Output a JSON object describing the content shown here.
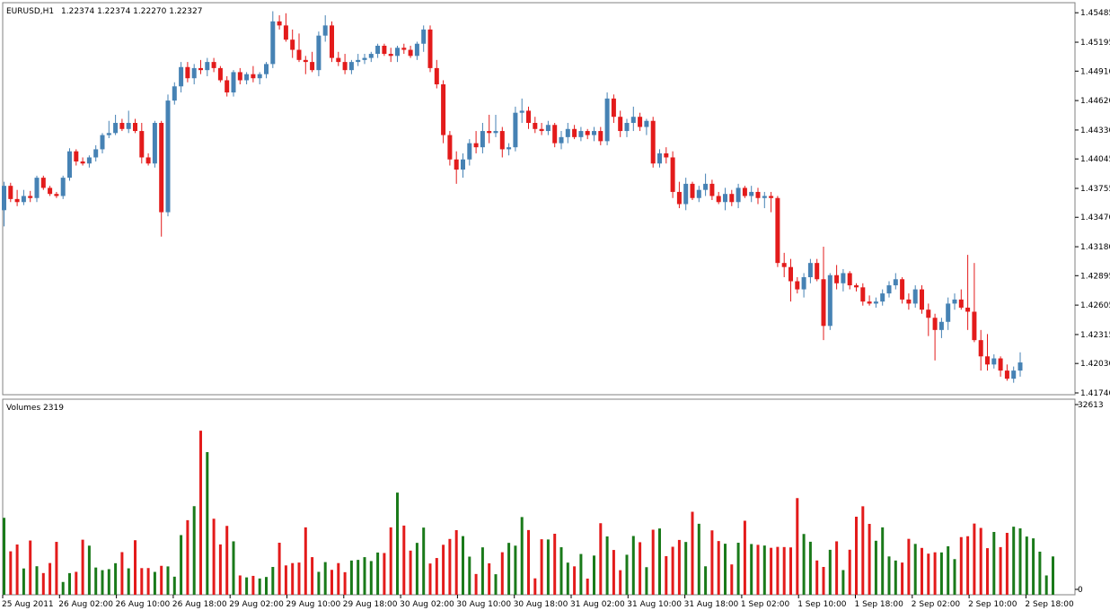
{
  "header": {
    "symbol": "EURUSD,H1",
    "ohlc_values": "1.22374 1.22374 1.22270 1.22327"
  },
  "volume_panel": {
    "label": "Volumes 2319",
    "max_label": "32613",
    "zero_label": "0"
  },
  "colors": {
    "bull_candle": "#4682b4",
    "bear_candle": "#e31b1b",
    "volume_up": "#1a7a1a",
    "volume_down": "#e31b1b",
    "background": "#ffffff",
    "frame": "#808080"
  },
  "chart_data": [
    {
      "type": "candlestick",
      "title": "EURUSD,H1",
      "x_tick_labels": [
        "25 Aug 2011",
        "26 Aug 02:00",
        "26 Aug 10:00",
        "26 Aug 18:00",
        "29 Aug 02:00",
        "29 Aug 10:00",
        "29 Aug 18:00",
        "30 Aug 02:00",
        "30 Aug 10:00",
        "30 Aug 18:00",
        "31 Aug 02:00",
        "31 Aug 10:00",
        "31 Aug 18:00",
        "1 Sep 02:00",
        "1 Sep 10:00",
        "1 Sep 18:00",
        "2 Sep 02:00",
        "2 Sep 10:00",
        "2 Sep 18:00"
      ],
      "y_tick_labels": [
        "1.45485",
        "1.45195",
        "1.44910",
        "1.44620",
        "1.44330",
        "1.44045",
        "1.43755",
        "1.43470",
        "1.43180",
        "1.42895",
        "1.42605",
        "1.42315",
        "1.42030",
        "1.41740"
      ],
      "ylim": [
        1.4174,
        1.4554
      ],
      "candles_ohlc": [
        [
          1.4354,
          1.4382,
          1.4338,
          1.4378
        ],
        [
          1.4378,
          1.4381,
          1.4362,
          1.4365
        ],
        [
          1.4365,
          1.4374,
          1.4358,
          1.4362
        ],
        [
          1.4362,
          1.4374,
          1.4359,
          1.4368
        ],
        [
          1.4368,
          1.4373,
          1.4362,
          1.4366
        ],
        [
          1.4366,
          1.4388,
          1.4362,
          1.4386
        ],
        [
          1.4386,
          1.4388,
          1.4374,
          1.4376
        ],
        [
          1.4376,
          1.4378,
          1.4368,
          1.437
        ],
        [
          1.437,
          1.4372,
          1.4366,
          1.4368
        ],
        [
          1.4368,
          1.4388,
          1.4365,
          1.4386
        ],
        [
          1.4386,
          1.4415,
          1.4383,
          1.4412
        ],
        [
          1.4412,
          1.4414,
          1.4398,
          1.4402
        ],
        [
          1.4402,
          1.4406,
          1.4398,
          1.44
        ],
        [
          1.44,
          1.4408,
          1.4396,
          1.4406
        ],
        [
          1.4406,
          1.4418,
          1.4402,
          1.4414
        ],
        [
          1.4414,
          1.443,
          1.441,
          1.4428
        ],
        [
          1.4428,
          1.4442,
          1.4425,
          1.443
        ],
        [
          1.443,
          1.4448,
          1.4428,
          1.444
        ],
        [
          1.444,
          1.4444,
          1.4432,
          1.4434
        ],
        [
          1.4434,
          1.4452,
          1.443,
          1.444
        ],
        [
          1.444,
          1.4444,
          1.443,
          1.4432
        ],
        [
          1.4432,
          1.444,
          1.44,
          1.4406
        ],
        [
          1.4406,
          1.441,
          1.4398,
          1.44
        ],
        [
          1.44,
          1.4442,
          1.4396,
          1.444
        ],
        [
          1.444,
          1.4442,
          1.4328,
          1.4352
        ],
        [
          1.4352,
          1.4468,
          1.4348,
          1.4462
        ],
        [
          1.4462,
          1.448,
          1.4458,
          1.4476
        ],
        [
          1.4476,
          1.45,
          1.447,
          1.4495
        ],
        [
          1.4495,
          1.45,
          1.448,
          1.4484
        ],
        [
          1.4484,
          1.4498,
          1.4478,
          1.4494
        ],
        [
          1.4494,
          1.4502,
          1.4488,
          1.4492
        ],
        [
          1.4492,
          1.4504,
          1.4486,
          1.45
        ],
        [
          1.45,
          1.4504,
          1.449,
          1.4494
        ],
        [
          1.4494,
          1.4496,
          1.448,
          1.4482
        ],
        [
          1.4482,
          1.4486,
          1.4466,
          1.447
        ],
        [
          1.447,
          1.4492,
          1.4466,
          1.449
        ],
        [
          1.449,
          1.4494,
          1.4478,
          1.4482
        ],
        [
          1.4482,
          1.449,
          1.4478,
          1.4488
        ],
        [
          1.4488,
          1.4496,
          1.448,
          1.4484
        ],
        [
          1.4484,
          1.449,
          1.4478,
          1.4488
        ],
        [
          1.4488,
          1.45,
          1.4484,
          1.4498
        ],
        [
          1.4498,
          1.455,
          1.4494,
          1.454
        ],
        [
          1.454,
          1.4546,
          1.4532,
          1.4536
        ],
        [
          1.4536,
          1.4548,
          1.452,
          1.4522
        ],
        [
          1.4522,
          1.4532,
          1.4504,
          1.4512
        ],
        [
          1.4512,
          1.4528,
          1.45,
          1.4502
        ],
        [
          1.4502,
          1.4506,
          1.4488,
          1.45
        ],
        [
          1.45,
          1.451,
          1.449,
          1.4492
        ],
        [
          1.4492,
          1.453,
          1.4486,
          1.4526
        ],
        [
          1.4526,
          1.4546,
          1.452,
          1.4536
        ],
        [
          1.4536,
          1.454,
          1.45,
          1.4504
        ],
        [
          1.4504,
          1.451,
          1.4496,
          1.45
        ],
        [
          1.45,
          1.4508,
          1.4488,
          1.4492
        ],
        [
          1.4492,
          1.4502,
          1.4488,
          1.45
        ],
        [
          1.45,
          1.4508,
          1.4496,
          1.4502
        ],
        [
          1.4502,
          1.4508,
          1.4498,
          1.4504
        ],
        [
          1.4504,
          1.451,
          1.45,
          1.4508
        ],
        [
          1.4508,
          1.4518,
          1.4504,
          1.4516
        ],
        [
          1.4516,
          1.4518,
          1.4506,
          1.4508
        ],
        [
          1.4508,
          1.4514,
          1.45,
          1.4506
        ],
        [
          1.4506,
          1.4516,
          1.45,
          1.4514
        ],
        [
          1.4514,
          1.4518,
          1.4508,
          1.4512
        ],
        [
          1.4512,
          1.4516,
          1.4504,
          1.4506
        ],
        [
          1.4506,
          1.452,
          1.4502,
          1.4518
        ],
        [
          1.4518,
          1.4536,
          1.451,
          1.4532
        ],
        [
          1.4532,
          1.4536,
          1.449,
          1.4494
        ],
        [
          1.4494,
          1.4502,
          1.4474,
          1.4478
        ],
        [
          1.4478,
          1.4482,
          1.442,
          1.4428
        ],
        [
          1.4428,
          1.4432,
          1.4398,
          1.4404
        ],
        [
          1.4404,
          1.4412,
          1.438,
          1.4394
        ],
        [
          1.4394,
          1.441,
          1.4386,
          1.4404
        ],
        [
          1.4404,
          1.4424,
          1.4398,
          1.442
        ],
        [
          1.442,
          1.4432,
          1.441,
          1.4416
        ],
        [
          1.4416,
          1.444,
          1.441,
          1.4432
        ],
        [
          1.4432,
          1.4448,
          1.442,
          1.443
        ],
        [
          1.443,
          1.4448,
          1.4426,
          1.4432
        ],
        [
          1.4432,
          1.4436,
          1.4406,
          1.4414
        ],
        [
          1.4414,
          1.442,
          1.4408,
          1.4416
        ],
        [
          1.4416,
          1.4456,
          1.4412,
          1.445
        ],
        [
          1.445,
          1.4464,
          1.444,
          1.4452
        ],
        [
          1.4452,
          1.4456,
          1.4434,
          1.444
        ],
        [
          1.444,
          1.4446,
          1.443,
          1.4434
        ],
        [
          1.4434,
          1.444,
          1.4428,
          1.4432
        ],
        [
          1.4432,
          1.4442,
          1.4428,
          1.4438
        ],
        [
          1.4438,
          1.444,
          1.4416,
          1.442
        ],
        [
          1.442,
          1.4432,
          1.4414,
          1.4426
        ],
        [
          1.4426,
          1.444,
          1.442,
          1.4434
        ],
        [
          1.4434,
          1.4438,
          1.4424,
          1.4426
        ],
        [
          1.4426,
          1.4436,
          1.4422,
          1.4432
        ],
        [
          1.4432,
          1.4434,
          1.4424,
          1.4428
        ],
        [
          1.4428,
          1.4436,
          1.4422,
          1.4432
        ],
        [
          1.4432,
          1.4436,
          1.4418,
          1.4422
        ],
        [
          1.4422,
          1.447,
          1.4418,
          1.4464
        ],
        [
          1.4464,
          1.4468,
          1.444,
          1.4446
        ],
        [
          1.4446,
          1.4452,
          1.4426,
          1.4432
        ],
        [
          1.4432,
          1.4444,
          1.4426,
          1.444
        ],
        [
          1.444,
          1.4456,
          1.4432,
          1.4446
        ],
        [
          1.4446,
          1.445,
          1.4432,
          1.4436
        ],
        [
          1.4436,
          1.4444,
          1.4428,
          1.4442
        ],
        [
          1.4442,
          1.4446,
          1.4396,
          1.44
        ],
        [
          1.44,
          1.4414,
          1.4396,
          1.441
        ],
        [
          1.441,
          1.4416,
          1.44,
          1.4406
        ],
        [
          1.4406,
          1.4412,
          1.4366,
          1.4372
        ],
        [
          1.4372,
          1.4382,
          1.4356,
          1.436
        ],
        [
          1.436,
          1.4386,
          1.4354,
          1.438
        ],
        [
          1.438,
          1.4382,
          1.4364,
          1.4366
        ],
        [
          1.4366,
          1.4378,
          1.4362,
          1.4374
        ],
        [
          1.4374,
          1.439,
          1.4368,
          1.438
        ],
        [
          1.438,
          1.4384,
          1.4364,
          1.4368
        ],
        [
          1.4368,
          1.4372,
          1.436,
          1.4362
        ],
        [
          1.4362,
          1.4376,
          1.4354,
          1.437
        ],
        [
          1.437,
          1.4374,
          1.4358,
          1.4362
        ],
        [
          1.4362,
          1.438,
          1.4356,
          1.4376
        ],
        [
          1.4376,
          1.4378,
          1.4366,
          1.4368
        ],
        [
          1.4368,
          1.4378,
          1.4362,
          1.4372
        ],
        [
          1.4372,
          1.4376,
          1.436,
          1.4366
        ],
        [
          1.4366,
          1.4372,
          1.4356,
          1.4368
        ],
        [
          1.4368,
          1.4372,
          1.4352,
          1.4366
        ],
        [
          1.4366,
          1.4368,
          1.4298,
          1.4302
        ],
        [
          1.4302,
          1.4312,
          1.4288,
          1.4298
        ],
        [
          1.4298,
          1.4306,
          1.4264,
          1.4284
        ],
        [
          1.4284,
          1.4288,
          1.4272,
          1.4276
        ],
        [
          1.4276,
          1.4292,
          1.4268,
          1.4288
        ],
        [
          1.4288,
          1.4306,
          1.4282,
          1.4302
        ],
        [
          1.4302,
          1.4306,
          1.4284,
          1.4286
        ],
        [
          1.4286,
          1.4318,
          1.4226,
          1.424
        ],
        [
          1.424,
          1.4292,
          1.4236,
          1.429
        ],
        [
          1.429,
          1.43,
          1.4276,
          1.4282
        ],
        [
          1.4282,
          1.4296,
          1.4274,
          1.4292
        ],
        [
          1.4292,
          1.4294,
          1.4276,
          1.428
        ],
        [
          1.428,
          1.4282,
          1.4274,
          1.4278
        ],
        [
          1.4278,
          1.4282,
          1.426,
          1.4264
        ],
        [
          1.4264,
          1.427,
          1.426,
          1.4262
        ],
        [
          1.4262,
          1.4268,
          1.4258,
          1.4264
        ],
        [
          1.4264,
          1.4276,
          1.426,
          1.4272
        ],
        [
          1.4272,
          1.4284,
          1.4268,
          1.428
        ],
        [
          1.428,
          1.4292,
          1.4276,
          1.4286
        ],
        [
          1.4286,
          1.4288,
          1.4262,
          1.4266
        ],
        [
          1.4266,
          1.4272,
          1.4256,
          1.4262
        ],
        [
          1.4262,
          1.428,
          1.4258,
          1.4276
        ],
        [
          1.4276,
          1.428,
          1.4252,
          1.4256
        ],
        [
          1.4256,
          1.4262,
          1.423,
          1.4248
        ],
        [
          1.4248,
          1.4252,
          1.4206,
          1.4236
        ],
        [
          1.4236,
          1.4248,
          1.4228,
          1.4244
        ],
        [
          1.4244,
          1.4268,
          1.4236,
          1.4262
        ],
        [
          1.4262,
          1.4272,
          1.4256,
          1.4266
        ],
        [
          1.4266,
          1.4276,
          1.4256,
          1.4258
        ],
        [
          1.4258,
          1.431,
          1.4236,
          1.4254
        ],
        [
          1.4254,
          1.4302,
          1.4224,
          1.4226
        ],
        [
          1.4226,
          1.4236,
          1.4196,
          1.421
        ],
        [
          1.421,
          1.4232,
          1.4196,
          1.4202
        ],
        [
          1.4202,
          1.4212,
          1.4198,
          1.4208
        ],
        [
          1.4208,
          1.421,
          1.419,
          1.4196
        ],
        [
          1.4196,
          1.4202,
          1.4186,
          1.4188
        ],
        [
          1.4188,
          1.42,
          1.4184,
          1.4196
        ],
        [
          1.4196,
          1.4214,
          1.419,
          1.4204
        ]
      ]
    },
    {
      "type": "bar",
      "title": "Volumes 2319",
      "ylim": [
        0,
        32613
      ],
      "values": [
        13200,
        7450,
        8620,
        4510,
        9300,
        4890,
        3720,
        5440,
        9070,
        2190,
        3710,
        3930,
        9440,
        8420,
        4670,
        4220,
        4390,
        5410,
        7310,
        4530,
        9350,
        4570,
        4580,
        3920,
        4960,
        4860,
        3100,
        10230,
        12790,
        15190,
        28130,
        24460,
        13040,
        8630,
        11810,
        9160,
        3310,
        2980,
        3240,
        2790,
        3050,
        4770,
        8920,
        5030,
        5430,
        5520,
        11550,
        6450,
        3930,
        5600,
        4270,
        5430,
        3870,
        5870,
        5980,
        6450,
        5780,
        7240,
        7160,
        11560,
        17510,
        11870,
        7570,
        8900,
        11520,
        5360,
        6300,
        8570,
        9570,
        11070,
        10060,
        6540,
        3560,
        8130,
        5390,
        3520,
        7290,
        8900,
        8420,
        13320,
        11090,
        2810,
        9520,
        9480,
        10470,
        8150,
        5510,
        4870,
        6990,
        2770,
        6720,
        12270,
        10000,
        7680,
        4210,
        6860,
        10080,
        9010,
        4730,
        11160,
        11370,
        6620,
        8230,
        9400,
        9050,
        14230,
        12180,
        4880,
        11040,
        9210,
        8750,
        5200,
        8920,
        12700,
        8700,
        8560,
        8440,
        8050,
        8210,
        8180,
        8120,
        16570,
        10430,
        9090,
        5880,
        4770,
        7710,
        9160,
        4230,
        7720,
        13390,
        15180,
        12160,
        9260,
        11550,
        6570,
        5870,
        5520,
        9590,
        8720,
        8030,
        7050,
        7280,
        7260,
        8310,
        6110,
        9890,
        10040,
        12210,
        11470,
        7990,
        10770,
        8170,
        10620,
        11680,
        11380,
        9980,
        9670,
        7390,
        3310,
        6570
      ]
    }
  ]
}
